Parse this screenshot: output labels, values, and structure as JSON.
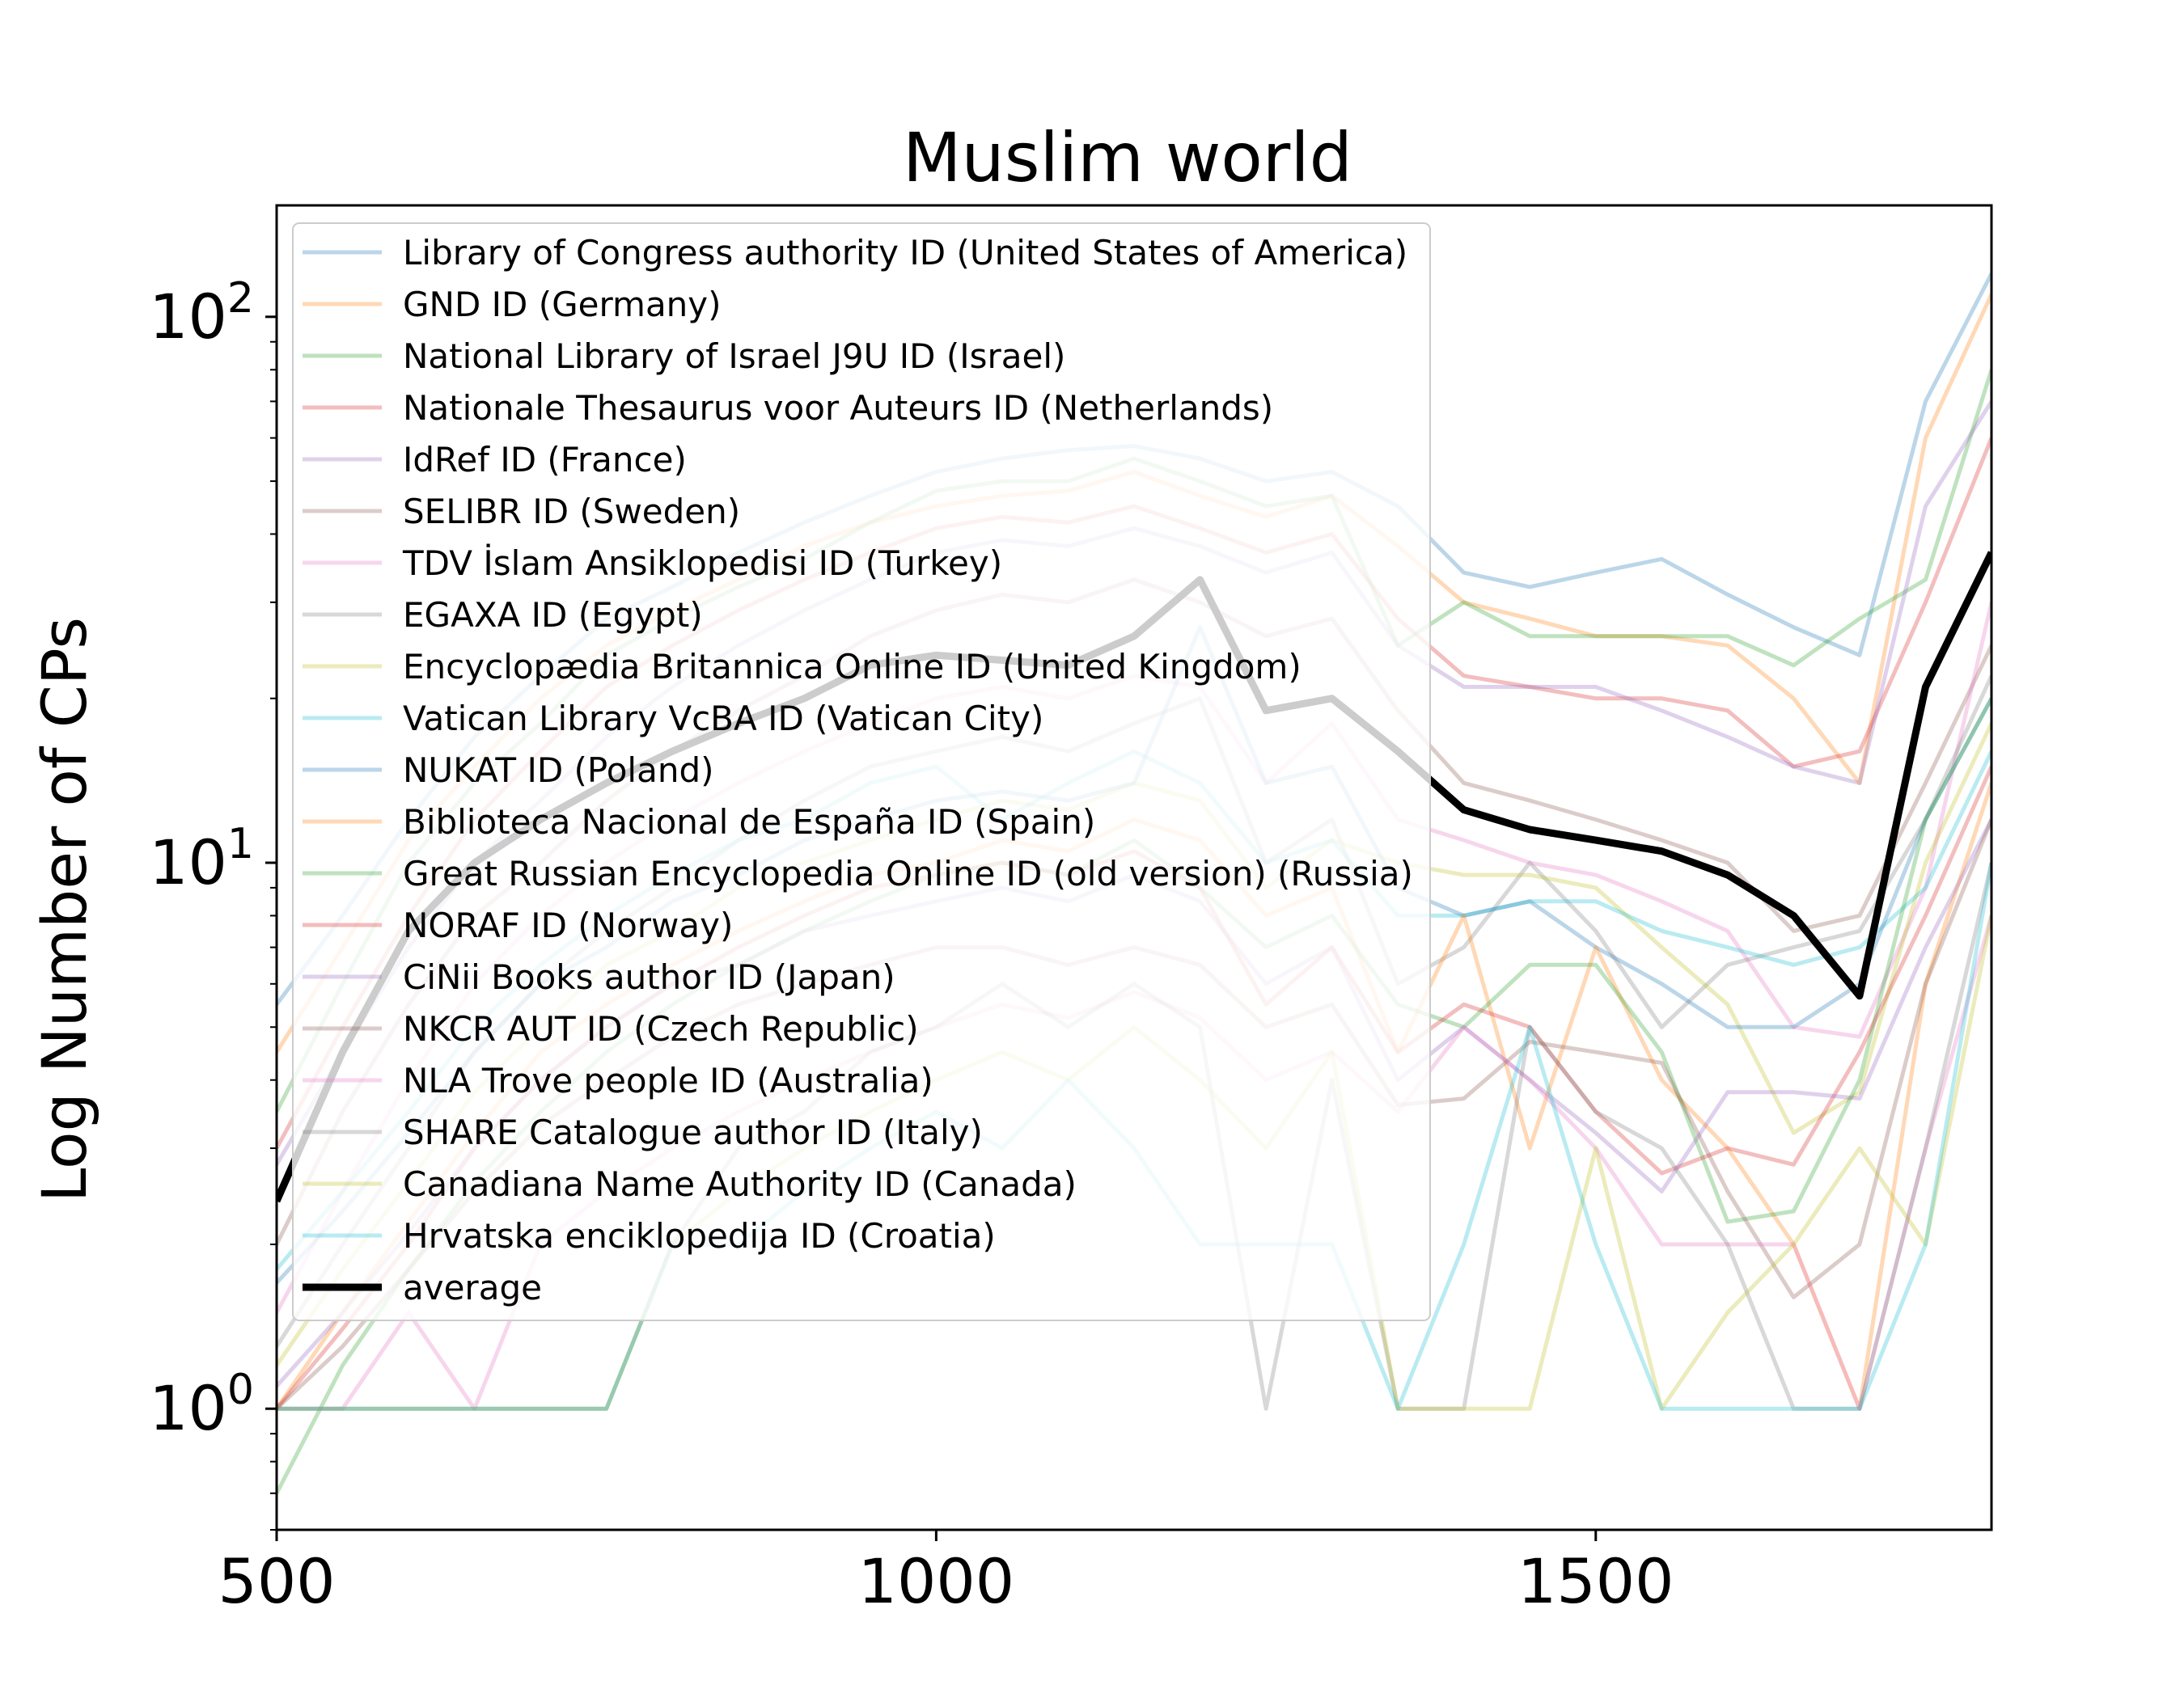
{
  "chart_data": {
    "type": "line",
    "title": "Muslim world",
    "xlabel": "",
    "ylabel": "Log Number of CPs",
    "xlim": [
      500,
      1800
    ],
    "ylim": [
      0.6,
      160
    ],
    "yscale": "log",
    "xticks": [
      500,
      1000,
      1500
    ],
    "yticks": [
      {
        "value": 1,
        "base": "10",
        "exp": "0"
      },
      {
        "value": 10,
        "base": "10",
        "exp": "1"
      },
      {
        "value": 100,
        "base": "10",
        "exp": "2"
      }
    ],
    "legend_position": "upper-left",
    "x": [
      500,
      550,
      600,
      650,
      700,
      750,
      800,
      850,
      900,
      950,
      1000,
      1050,
      1100,
      1150,
      1200,
      1250,
      1300,
      1350,
      1400,
      1450,
      1500,
      1550,
      1600,
      1650,
      1700,
      1750,
      1800
    ],
    "series": [
      {
        "name": "Library of Congress authority ID (United States of America)",
        "color": "#1f77b4",
        "values": [
          5.5,
          8,
          12,
          17,
          22,
          28,
          32,
          37,
          42,
          47,
          52,
          55,
          57,
          58,
          55,
          50,
          52,
          45,
          34,
          32,
          34,
          36,
          31,
          27,
          24,
          70,
          120
        ]
      },
      {
        "name": "GND ID (Germany)",
        "color": "#ff7f0e",
        "values": [
          4.5,
          7,
          11,
          15,
          20,
          25,
          29,
          33,
          38,
          42,
          45,
          47,
          48,
          52,
          47,
          43,
          47,
          38,
          30,
          28,
          26,
          26,
          25,
          20,
          14,
          60,
          110
        ]
      },
      {
        "name": "National Library of Israel J9U ID (Israel)",
        "color": "#2ca02c",
        "values": [
          3.5,
          6,
          10,
          14,
          18,
          24,
          28,
          32,
          36,
          42,
          48,
          50,
          50,
          55,
          50,
          45,
          47,
          25,
          30,
          26,
          26,
          26,
          26,
          23,
          28,
          33,
          80
        ]
      },
      {
        "name": "Nationale Thesaurus voor Auteurs ID (Netherlands)",
        "color": "#d62728",
        "values": [
          3,
          5,
          8,
          12,
          16,
          21,
          25,
          29,
          33,
          37,
          41,
          43,
          42,
          45,
          41,
          37,
          40,
          28,
          22,
          21,
          20,
          20,
          19,
          15,
          16,
          30,
          60
        ]
      },
      {
        "name": "IdRef ID (France)",
        "color": "#9467bd",
        "values": [
          2.8,
          4.5,
          7,
          10,
          13,
          17,
          21,
          25,
          29,
          33,
          37,
          39,
          38,
          41,
          38,
          34,
          37,
          25,
          21,
          21,
          21,
          19,
          17,
          15,
          14,
          45,
          70
        ]
      },
      {
        "name": "SELIBR ID (Sweden)",
        "color": "#8c564b",
        "values": [
          2,
          3.5,
          5.5,
          8,
          10,
          13,
          16,
          19,
          22,
          26,
          29,
          31,
          30,
          33,
          30,
          26,
          28,
          19,
          14,
          13,
          12,
          11,
          10,
          7.5,
          8,
          14,
          25
        ]
      },
      {
        "name": "TDV İslam Ansiklopedisi ID (Turkey)",
        "color": "#e377c2",
        "values": [
          1.5,
          2.5,
          4,
          6,
          8,
          10,
          12,
          14,
          16,
          18,
          20,
          21,
          20,
          22,
          21,
          14,
          18,
          12,
          11,
          10,
          9.5,
          8.5,
          7.5,
          5,
          4.8,
          9,
          30
        ]
      },
      {
        "name": "EGAXA ID (Egypt)",
        "color": "#7f7f7f",
        "values": [
          1.3,
          2,
          3,
          4.5,
          6,
          7.5,
          9,
          11,
          13,
          15,
          16,
          17,
          16,
          18,
          20,
          10,
          12,
          6,
          7,
          10,
          7.5,
          5,
          6.5,
          7,
          7.5,
          12,
          22
        ]
      },
      {
        "name": "Encyclopædia Britannica Online ID (United Kingdom)",
        "color": "#bcbd22",
        "values": [
          1.2,
          1.8,
          2.6,
          3.8,
          5,
          6.5,
          7.5,
          9,
          10,
          11,
          12,
          13,
          12.5,
          14,
          13,
          9,
          11,
          10,
          9.5,
          9.5,
          9,
          7,
          5.5,
          3.2,
          3.8,
          10,
          18
        ]
      },
      {
        "name": "Vatican Library VcBA ID (Vatican City)",
        "color": "#17becf",
        "values": [
          1.8,
          2.5,
          3.5,
          5,
          6.5,
          8,
          9.5,
          11,
          12,
          14,
          15,
          12,
          14,
          16,
          14,
          10,
          11,
          8,
          8,
          8.5,
          8.5,
          7.5,
          7,
          6.5,
          7,
          9,
          16
        ]
      },
      {
        "name": "NUKAT ID (Poland)",
        "color": "#1f77b4",
        "values": [
          1.7,
          2.3,
          3.2,
          4.5,
          6,
          7,
          8.5,
          9.5,
          11,
          12,
          13,
          13.5,
          13,
          14,
          27,
          14,
          15,
          9,
          8,
          8.5,
          7,
          6,
          5,
          5,
          6,
          12,
          20
        ]
      },
      {
        "name": "Biblioteca Nacional de España ID (Spain)",
        "color": "#ff7f0e",
        "values": [
          1,
          1.5,
          2.2,
          3.2,
          4.5,
          5.5,
          6.5,
          7.5,
          8.5,
          9.5,
          10,
          11,
          10.5,
          12,
          11,
          8,
          9,
          4.5,
          8,
          3,
          7,
          4,
          3,
          2,
          1,
          6,
          14
        ]
      },
      {
        "name": "Great Russian Encyclopedia Online ID (old version) (Russia)",
        "color": "#2ca02c",
        "values": [
          0.7,
          1.2,
          1.8,
          2.6,
          3.5,
          4.5,
          5.5,
          6.5,
          7.5,
          8.5,
          9.5,
          10,
          9.5,
          11,
          9,
          7,
          8,
          5.5,
          5,
          6.5,
          6.5,
          4.5,
          2.2,
          2.3,
          4,
          12,
          20
        ]
      },
      {
        "name": "NORAF ID (Norway)",
        "color": "#d62728",
        "values": [
          1,
          1.4,
          2,
          3,
          4,
          5,
          6,
          7,
          8,
          9,
          9.5,
          10,
          9.5,
          10.5,
          9,
          5.5,
          7,
          4.5,
          5.5,
          5,
          3.5,
          2.7,
          3,
          2.8,
          4.5,
          8,
          15
        ]
      },
      {
        "name": "CiNii Books author ID (Japan)",
        "color": "#9467bd",
        "values": [
          1.1,
          1.5,
          2.1,
          3,
          4,
          5,
          6,
          6.5,
          7.5,
          8,
          8.5,
          9,
          8.5,
          9.5,
          8.5,
          6,
          7,
          4,
          5,
          4,
          3.2,
          2.5,
          3.8,
          3.8,
          3.7,
          7,
          12
        ]
      },
      {
        "name": "NKCR AUT ID (Czech Republic)",
        "color": "#8c564b",
        "values": [
          1,
          1.3,
          1.8,
          2.5,
          3.3,
          4,
          4.8,
          5.5,
          6,
          6.5,
          7,
          7,
          6.5,
          7,
          6.5,
          5,
          5.5,
          3.6,
          3.7,
          4.7,
          4.5,
          4.3,
          2.5,
          1.6,
          2,
          6,
          12
        ]
      },
      {
        "name": "NLA Trove people ID (Australia)",
        "color": "#e377c2",
        "values": [
          1,
          1,
          1.5,
          1,
          2,
          2.5,
          3,
          3.5,
          4,
          4.5,
          5,
          5.5,
          5.2,
          5.8,
          5.2,
          4,
          4.5,
          3.5,
          5,
          4,
          3,
          2,
          2,
          2,
          1,
          3,
          8
        ]
      },
      {
        "name": "SHARE Catalogue author ID (Italy)",
        "color": "#7f7f7f",
        "values": [
          1,
          1,
          1,
          1,
          1,
          1,
          2,
          3,
          3.5,
          4.5,
          5,
          6,
          5,
          6,
          5,
          1,
          4,
          1,
          1,
          5,
          3.5,
          3,
          2,
          1,
          1,
          3,
          10
        ]
      },
      {
        "name": "Canadiana Name Authority ID (Canada)",
        "color": "#bcbd22",
        "values": [
          1,
          1,
          1,
          1,
          1,
          1,
          2,
          2.5,
          3,
          3.5,
          4,
          4.5,
          4,
          5,
          4,
          3,
          4.5,
          1,
          1,
          1,
          3,
          1,
          1.5,
          2,
          3,
          2,
          8
        ]
      },
      {
        "name": "Hrvatska enciklopedija ID (Croatia)",
        "color": "#17becf",
        "values": [
          1,
          1,
          1,
          1,
          1,
          1,
          2,
          2,
          2.5,
          3,
          3.5,
          3,
          4,
          3,
          2,
          2,
          2,
          1,
          2,
          5,
          2,
          1,
          1,
          1,
          1,
          2,
          10
        ]
      },
      {
        "name": "average",
        "color": "#000000",
        "values": [
          2.4,
          4.5,
          7.5,
          10,
          12,
          14,
          16,
          18,
          20,
          23,
          24,
          23.5,
          23,
          26,
          33,
          19,
          20,
          16,
          12.5,
          11.5,
          11,
          10.5,
          9.5,
          8,
          5.7,
          21,
          37
        ]
      }
    ]
  }
}
